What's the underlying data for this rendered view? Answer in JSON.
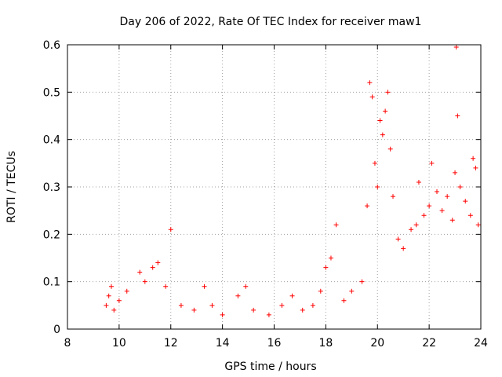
{
  "chart_data": {
    "type": "scatter",
    "title": "Day 206 of 2022, Rate Of TEC Index for receiver maw1",
    "xlabel": "GPS time / hours",
    "ylabel": "ROTI / TECUs",
    "xlim": [
      8,
      24
    ],
    "ylim": [
      0,
      0.6
    ],
    "xticks": [
      8,
      10,
      12,
      14,
      16,
      18,
      20,
      22,
      24
    ],
    "yticks": [
      0,
      0.1,
      0.2,
      0.3,
      0.4,
      0.5,
      0.6
    ],
    "xtick_labels": [
      "8",
      "10",
      "12",
      "14",
      "16",
      "18",
      "20",
      "22",
      "24"
    ],
    "ytick_labels": [
      "0",
      "0.1",
      "0.2",
      "0.3",
      "0.4",
      "0.5",
      "0.6"
    ],
    "grid": true,
    "marker": "plus",
    "color": "#ff0000",
    "series": [
      {
        "x": [
          9.5,
          9.6,
          9.7,
          9.8,
          10.0,
          10.3,
          10.8,
          11.0,
          11.3,
          11.5,
          11.8,
          12.0,
          12.4,
          12.9,
          13.3,
          13.6,
          14.0,
          14.6,
          14.9,
          15.2,
          15.8,
          16.3,
          16.7,
          17.1,
          17.5,
          17.8,
          18.0,
          18.2,
          18.4,
          18.7,
          19.0,
          19.4,
          19.6,
          19.7,
          19.8,
          19.9,
          20.0,
          20.1,
          20.2,
          20.3,
          20.4,
          20.5,
          20.6,
          20.8,
          21.0,
          21.3,
          21.5,
          21.6,
          21.8,
          22.0,
          22.1,
          22.3,
          22.5,
          22.7,
          22.9,
          23.0,
          23.05,
          23.1,
          23.2,
          23.4,
          23.6,
          23.7,
          23.8,
          23.9
        ],
        "y": [
          0.05,
          0.07,
          0.09,
          0.04,
          0.06,
          0.08,
          0.12,
          0.1,
          0.13,
          0.14,
          0.09,
          0.21,
          0.05,
          0.04,
          0.09,
          0.05,
          0.03,
          0.07,
          0.09,
          0.04,
          0.03,
          0.05,
          0.07,
          0.04,
          0.05,
          0.08,
          0.13,
          0.15,
          0.22,
          0.06,
          0.08,
          0.1,
          0.26,
          0.52,
          0.49,
          0.35,
          0.3,
          0.44,
          0.41,
          0.46,
          0.5,
          0.38,
          0.28,
          0.19,
          0.17,
          0.21,
          0.22,
          0.31,
          0.24,
          0.26,
          0.35,
          0.29,
          0.25,
          0.28,
          0.23,
          0.33,
          0.595,
          0.45,
          0.3,
          0.27,
          0.24,
          0.36,
          0.34,
          0.22
        ]
      }
    ]
  }
}
